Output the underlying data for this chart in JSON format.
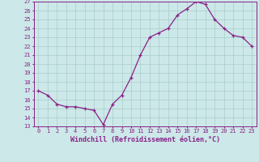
{
  "x": [
    0,
    1,
    2,
    3,
    4,
    5,
    6,
    7,
    8,
    9,
    10,
    11,
    12,
    13,
    14,
    15,
    16,
    17,
    18,
    19,
    20,
    21,
    22,
    23
  ],
  "y": [
    17.0,
    16.5,
    15.5,
    15.2,
    15.2,
    15.0,
    14.8,
    13.2,
    15.5,
    16.5,
    18.5,
    21.0,
    23.0,
    23.5,
    24.0,
    25.5,
    26.2,
    27.0,
    26.7,
    25.0,
    24.0,
    23.2,
    23.0,
    22.0
  ],
  "line_color": "#882288",
  "marker": "+",
  "bg_color": "#cce8e8",
  "grid_color": "#aacccc",
  "xlabel": "Windchill (Refroidissement éolien,°C)",
  "xlabel_color": "#882288",
  "tick_color": "#882288",
  "spine_color": "#882288",
  "ylim": [
    13,
    27
  ],
  "xlim_min": -0.5,
  "xlim_max": 23.5,
  "yticks": [
    13,
    14,
    15,
    16,
    17,
    18,
    19,
    20,
    21,
    22,
    23,
    24,
    25,
    26,
    27
  ],
  "xticks": [
    0,
    1,
    2,
    3,
    4,
    5,
    6,
    7,
    8,
    9,
    10,
    11,
    12,
    13,
    14,
    15,
    16,
    17,
    18,
    19,
    20,
    21,
    22,
    23
  ],
  "tick_fontsize": 5.0,
  "xlabel_fontsize": 6.0,
  "marker_size": 3.5,
  "line_width": 0.9
}
